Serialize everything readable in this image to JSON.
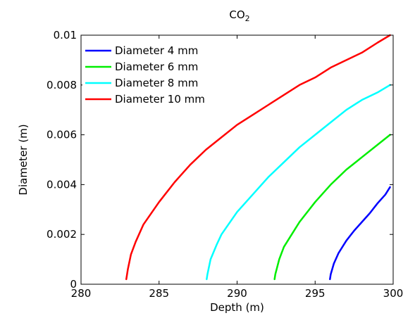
{
  "chart_data": {
    "type": "line",
    "title": "CO",
    "title_subscript": "2",
    "xlabel": "Depth (m)",
    "ylabel": "Diameter (m)",
    "xlim": [
      280,
      300
    ],
    "ylim": [
      0,
      0.01
    ],
    "xticks": [
      280,
      285,
      290,
      295,
      300
    ],
    "yticks": [
      0,
      0.002,
      0.004,
      0.006,
      0.008,
      0.01
    ],
    "xtick_labels": [
      "280",
      "285",
      "290",
      "295",
      "300"
    ],
    "ytick_labels": [
      "0",
      "0.002",
      "0.004",
      "0.006",
      "0.008",
      "0.01"
    ],
    "grid": false,
    "box": true,
    "legend_position": "top-left",
    "series": [
      {
        "name": "Diameter 4 mm",
        "color": "#0000ff",
        "x": [
          295.95,
          296.0,
          296.2,
          296.5,
          297.0,
          297.5,
          298.0,
          298.5,
          299.0,
          299.5,
          299.8
        ],
        "y": [
          0.0002,
          0.0004,
          0.00083,
          0.00125,
          0.00175,
          0.00215,
          0.0025,
          0.00285,
          0.00325,
          0.0036,
          0.0039
        ]
      },
      {
        "name": "Diameter 6 mm",
        "color": "#00ee00",
        "x": [
          292.4,
          292.45,
          292.7,
          293.0,
          293.5,
          294.0,
          295.0,
          296.0,
          297.0,
          298.0,
          299.0,
          299.8
        ],
        "y": [
          0.0002,
          0.0004,
          0.001,
          0.0015,
          0.002,
          0.0025,
          0.0033,
          0.004,
          0.0046,
          0.0051,
          0.0056,
          0.006
        ]
      },
      {
        "name": "Diameter 8 mm",
        "color": "#00ffff",
        "x": [
          288.05,
          288.1,
          288.3,
          288.7,
          289.0,
          290.0,
          291.0,
          292.0,
          293.0,
          294.0,
          295.0,
          296.0,
          297.0,
          298.0,
          299.0,
          299.8
        ],
        "y": [
          0.0002,
          0.0004,
          0.001,
          0.0016,
          0.002,
          0.0029,
          0.0036,
          0.0043,
          0.0049,
          0.0055,
          0.006,
          0.0065,
          0.007,
          0.0074,
          0.0077,
          0.008
        ]
      },
      {
        "name": "Diameter 10 mm",
        "color": "#ff0000",
        "x": [
          282.9,
          283.0,
          283.2,
          283.5,
          284.0,
          285.0,
          286.0,
          287.0,
          288.0,
          289.0,
          290.0,
          291.0,
          292.0,
          293.0,
          294.0,
          295.0,
          296.0,
          297.0,
          298.0,
          299.0,
          299.8
        ],
        "y": [
          0.0002,
          0.0006,
          0.0012,
          0.0017,
          0.0024,
          0.0033,
          0.0041,
          0.0048,
          0.0054,
          0.0059,
          0.0064,
          0.0068,
          0.0072,
          0.0076,
          0.008,
          0.0083,
          0.0087,
          0.009,
          0.0093,
          0.0097,
          0.01
        ]
      }
    ]
  }
}
